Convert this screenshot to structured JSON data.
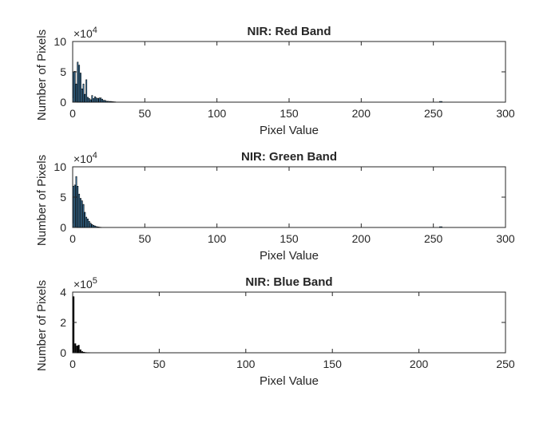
{
  "chart_data": [
    {
      "type": "bar",
      "title": "NIR: Red Band",
      "xlabel": "Pixel Value",
      "ylabel": "Number of Pixels",
      "xlim": [
        0,
        300
      ],
      "ylim": [
        0,
        100000
      ],
      "xticks": [
        "0",
        "50",
        "100",
        "150",
        "200",
        "250",
        "300"
      ],
      "yticks": [
        "0",
        "5",
        "10"
      ],
      "y_multiplier": "×10",
      "y_exponent": "4",
      "bar_color": "#4a9bd6",
      "values": [
        50000,
        51000,
        30000,
        66000,
        61000,
        48000,
        22000,
        30000,
        13000,
        37000,
        8000,
        6000,
        4000,
        11000,
        6000,
        9000,
        7000,
        6000,
        7000,
        7000,
        5000,
        3000,
        3000,
        1500,
        1500,
        1200,
        1200,
        800,
        600,
        400
      ]
    },
    {
      "type": "bar",
      "title": "NIR: Green Band",
      "xlabel": "Pixel Value",
      "ylabel": "Number of Pixels",
      "xlim": [
        0,
        300
      ],
      "ylim": [
        0,
        100000
      ],
      "xticks": [
        "0",
        "50",
        "100",
        "150",
        "200",
        "250",
        "300"
      ],
      "yticks": [
        "0",
        "5",
        "10"
      ],
      "y_multiplier": "×10",
      "y_exponent": "4",
      "bar_color": "#4a9bd6",
      "values": [
        68000,
        70000,
        84000,
        68000,
        55000,
        48000,
        44000,
        38000,
        25000,
        17000,
        14000,
        10000,
        7000,
        5000,
        3500,
        2500,
        1500,
        1000,
        600,
        300
      ]
    },
    {
      "type": "bar",
      "title": "NIR: Blue Band",
      "xlabel": "Pixel Value",
      "ylabel": "Number of Pixels",
      "xlim": [
        0,
        250
      ],
      "ylim": [
        0,
        400000
      ],
      "xticks": [
        "0",
        "50",
        "100",
        "150",
        "200",
        "250"
      ],
      "yticks": [
        "0",
        "2",
        "4"
      ],
      "y_multiplier": "×10",
      "y_exponent": "5",
      "bar_color": "#000000",
      "values": [
        370000,
        60000,
        45000,
        50000,
        20000,
        8000,
        4000,
        2000,
        1000,
        500
      ]
    }
  ]
}
